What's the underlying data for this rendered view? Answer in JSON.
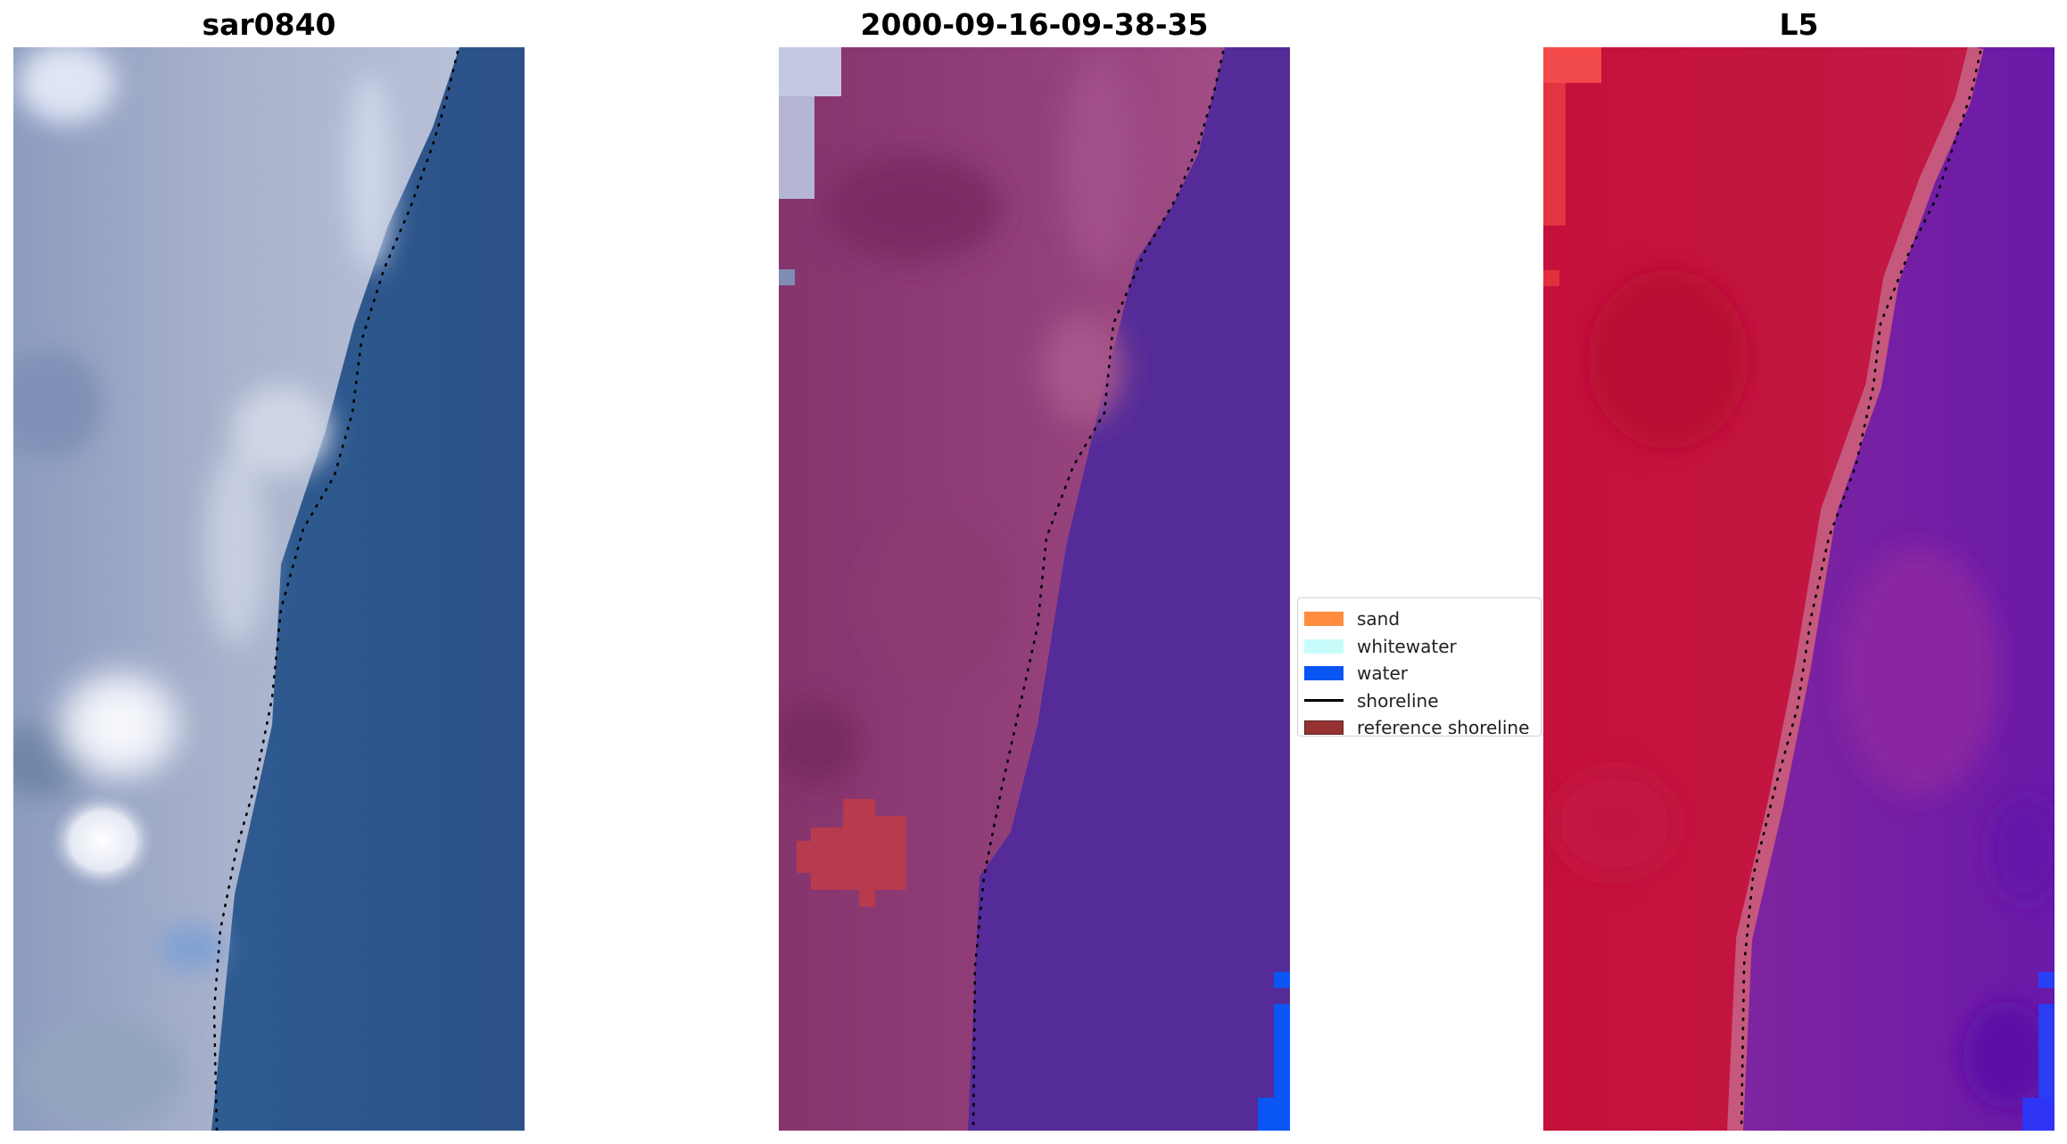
{
  "panels": [
    {
      "title": "sar0840"
    },
    {
      "title": "2000-09-16-09-38-35"
    },
    {
      "title": "L5"
    }
  ],
  "legend": {
    "items": [
      {
        "label": "sand",
        "kind": "patch",
        "color": "#ff8c3f"
      },
      {
        "label": "whitewater",
        "kind": "patch",
        "color": "#c8fcfa"
      },
      {
        "label": "water",
        "kind": "patch",
        "color": "#0a56f5"
      },
      {
        "label": "shoreline",
        "kind": "line",
        "color": "#000000"
      },
      {
        "label": "reference shoreline",
        "kind": "patch",
        "color": "#963232",
        "edge": "#5a1f1f"
      }
    ]
  },
  "colors": {
    "rgb_land": "#a6b0c8",
    "rgb_water": "#2f5a90",
    "false_color_land": "#8e3f77",
    "false_color_water": "#54299a",
    "ndwi_land": "#c0143c",
    "ndwi_water": "#7a24a0"
  }
}
